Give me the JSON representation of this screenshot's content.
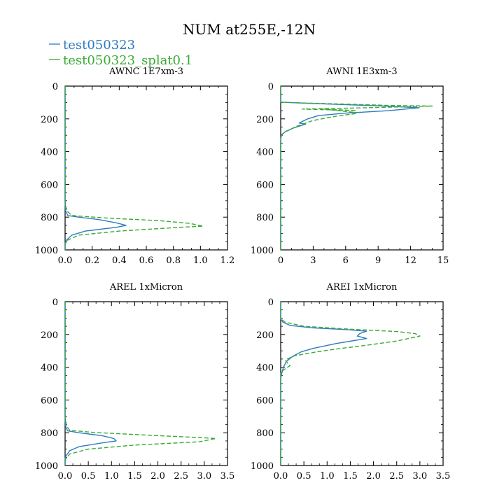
{
  "figure": {
    "title": "NUM at255E,-12N",
    "legend": [
      {
        "name": "test050323",
        "color": "#2f7bbf",
        "dash": "solid"
      },
      {
        "name": "test050323_splat0.1",
        "color": "#3aaa35",
        "dash": "dashed"
      }
    ]
  },
  "chart_data": [
    {
      "type": "line",
      "title": "AWNC  1E7xm-3",
      "xlim": [
        0,
        1.2
      ],
      "xticks": [
        "0.0",
        "0.2",
        "0.4",
        "0.6",
        "0.8",
        "1.0",
        "1.2"
      ],
      "ylim": [
        0,
        1000
      ],
      "yticks": [
        "0",
        "200",
        "400",
        "600",
        "800",
        "1000"
      ],
      "y_inverted": true,
      "series": [
        {
          "name": "test050323",
          "points": [
            [
              0,
              0
            ],
            [
              0,
              700
            ],
            [
              0.003,
              760
            ],
            [
              0.02,
              790
            ],
            [
              0.1,
              800
            ],
            [
              0.25,
              815
            ],
            [
              0.38,
              835
            ],
            [
              0.45,
              850
            ],
            [
              0.38,
              862
            ],
            [
              0.15,
              885
            ],
            [
              0.05,
              910
            ],
            [
              0.01,
              940
            ],
            [
              0,
              960
            ],
            [
              0,
              1000
            ]
          ]
        },
        {
          "name": "test050323_splat0.1",
          "points": [
            [
              0,
              0
            ],
            [
              0,
              700
            ],
            [
              0.01,
              760
            ],
            [
              0.05,
              790
            ],
            [
              0.3,
              805
            ],
            [
              0.7,
              822
            ],
            [
              0.92,
              838
            ],
            [
              1.02,
              855
            ],
            [
              0.85,
              862
            ],
            [
              0.4,
              885
            ],
            [
              0.1,
              910
            ],
            [
              0.02,
              940
            ],
            [
              0,
              965
            ],
            [
              0,
              1000
            ]
          ]
        }
      ]
    },
    {
      "type": "line",
      "title": "AWNI  1E3xm-3",
      "xlim": [
        0,
        15
      ],
      "xticks": [
        "0",
        "3",
        "6",
        "9",
        "12",
        "15"
      ],
      "ylim": [
        0,
        1000
      ],
      "yticks": [
        "0",
        "200",
        "400",
        "600",
        "800",
        "1000"
      ],
      "y_inverted": true,
      "series": [
        {
          "name": "test050323",
          "points": [
            [
              0,
              0
            ],
            [
              0,
              98
            ],
            [
              1.5,
              102
            ],
            [
              4.5,
              110
            ],
            [
              9,
              120
            ],
            [
              12.8,
              132
            ],
            [
              10,
              150
            ],
            [
              6,
              165
            ],
            [
              3.5,
              180
            ],
            [
              2.5,
              200
            ],
            [
              1.7,
              225
            ],
            [
              2.3,
              232
            ],
            [
              1.2,
              255
            ],
            [
              0.4,
              280
            ],
            [
              0.05,
              300
            ],
            [
              0,
              330
            ],
            [
              0,
              1000
            ]
          ]
        },
        {
          "name": "test050323_splat0.1",
          "points": [
            [
              0,
              0
            ],
            [
              0,
              98
            ],
            [
              2,
              103
            ],
            [
              6,
              110
            ],
            [
              10,
              118
            ],
            [
              14,
              122
            ],
            [
              8,
              132
            ],
            [
              2,
              140
            ],
            [
              7,
              150
            ],
            [
              4,
              140
            ],
            [
              6.7,
              160
            ],
            [
              6.9,
              168
            ],
            [
              5,
              185
            ],
            [
              3,
              210
            ],
            [
              1.5,
              245
            ],
            [
              0.5,
              275
            ],
            [
              0.1,
              295
            ],
            [
              0,
              330
            ],
            [
              0,
              1000
            ]
          ]
        }
      ]
    },
    {
      "type": "line",
      "title": "AREL  1xMicron",
      "xlim": [
        0,
        3.5
      ],
      "xticks": [
        "0.0",
        "0.5",
        "1.0",
        "1.5",
        "2.0",
        "2.5",
        "3.0",
        "3.5"
      ],
      "ylim": [
        0,
        1000
      ],
      "yticks": [
        "0",
        "200",
        "400",
        "600",
        "800",
        "1000"
      ],
      "y_inverted": true,
      "series": [
        {
          "name": "test050323",
          "points": [
            [
              0,
              0
            ],
            [
              0,
              700
            ],
            [
              0.01,
              760
            ],
            [
              0.05,
              788
            ],
            [
              0.3,
              800
            ],
            [
              0.8,
              818
            ],
            [
              1.05,
              835
            ],
            [
              1.1,
              850
            ],
            [
              0.8,
              862
            ],
            [
              0.3,
              885
            ],
            [
              0.1,
              910
            ],
            [
              0.02,
              940
            ],
            [
              0,
              960
            ],
            [
              0,
              1000
            ]
          ]
        },
        {
          "name": "test050323_splat0.1",
          "points": [
            [
              0,
              0
            ],
            [
              0,
              700
            ],
            [
              0.03,
              760
            ],
            [
              0.1,
              785
            ],
            [
              0.6,
              798
            ],
            [
              1.8,
              815
            ],
            [
              2.8,
              828
            ],
            [
              3.25,
              835
            ],
            [
              2.9,
              855
            ],
            [
              1.5,
              875
            ],
            [
              0.5,
              900
            ],
            [
              0.1,
              930
            ],
            [
              0.02,
              955
            ],
            [
              0,
              975
            ],
            [
              0,
              1000
            ]
          ]
        }
      ]
    },
    {
      "type": "line",
      "title": "AREI  1xMicron",
      "xlim": [
        0,
        3.5
      ],
      "xticks": [
        "0.0",
        "0.5",
        "1.0",
        "1.5",
        "2.0",
        "2.5",
        "3.0",
        "3.5"
      ],
      "ylim": [
        0,
        1000
      ],
      "yticks": [
        "0",
        "200",
        "400",
        "600",
        "800",
        "1000"
      ],
      "y_inverted": true,
      "series": [
        {
          "name": "test050323",
          "points": [
            [
              0,
              0
            ],
            [
              0,
              105
            ],
            [
              0.05,
              125
            ],
            [
              0.2,
              145
            ],
            [
              0.7,
              160
            ],
            [
              1.4,
              170
            ],
            [
              1.85,
              180
            ],
            [
              1.7,
              195
            ],
            [
              1.65,
              210
            ],
            [
              1.85,
              225
            ],
            [
              1.2,
              255
            ],
            [
              0.7,
              285
            ],
            [
              0.45,
              305
            ],
            [
              0.25,
              335
            ],
            [
              0.12,
              365
            ],
            [
              0.06,
              400
            ],
            [
              0.02,
              440
            ],
            [
              0,
              470
            ],
            [
              0,
              1000
            ]
          ]
        },
        {
          "name": "test050323_splat0.1",
          "points": [
            [
              0,
              0
            ],
            [
              0,
              105
            ],
            [
              0.1,
              125
            ],
            [
              0.5,
              150
            ],
            [
              1.5,
              168
            ],
            [
              2.5,
              182
            ],
            [
              2.9,
              195
            ],
            [
              3.0,
              210
            ],
            [
              2.5,
              240
            ],
            [
              1.8,
              268
            ],
            [
              1.3,
              285
            ],
            [
              0.8,
              305
            ],
            [
              0.3,
              330
            ],
            [
              0.1,
              355
            ],
            [
              0.15,
              375
            ],
            [
              0.2,
              390
            ],
            [
              0.1,
              410
            ],
            [
              0.02,
              425
            ],
            [
              0,
              440
            ],
            [
              0,
              1000
            ]
          ]
        }
      ]
    }
  ]
}
